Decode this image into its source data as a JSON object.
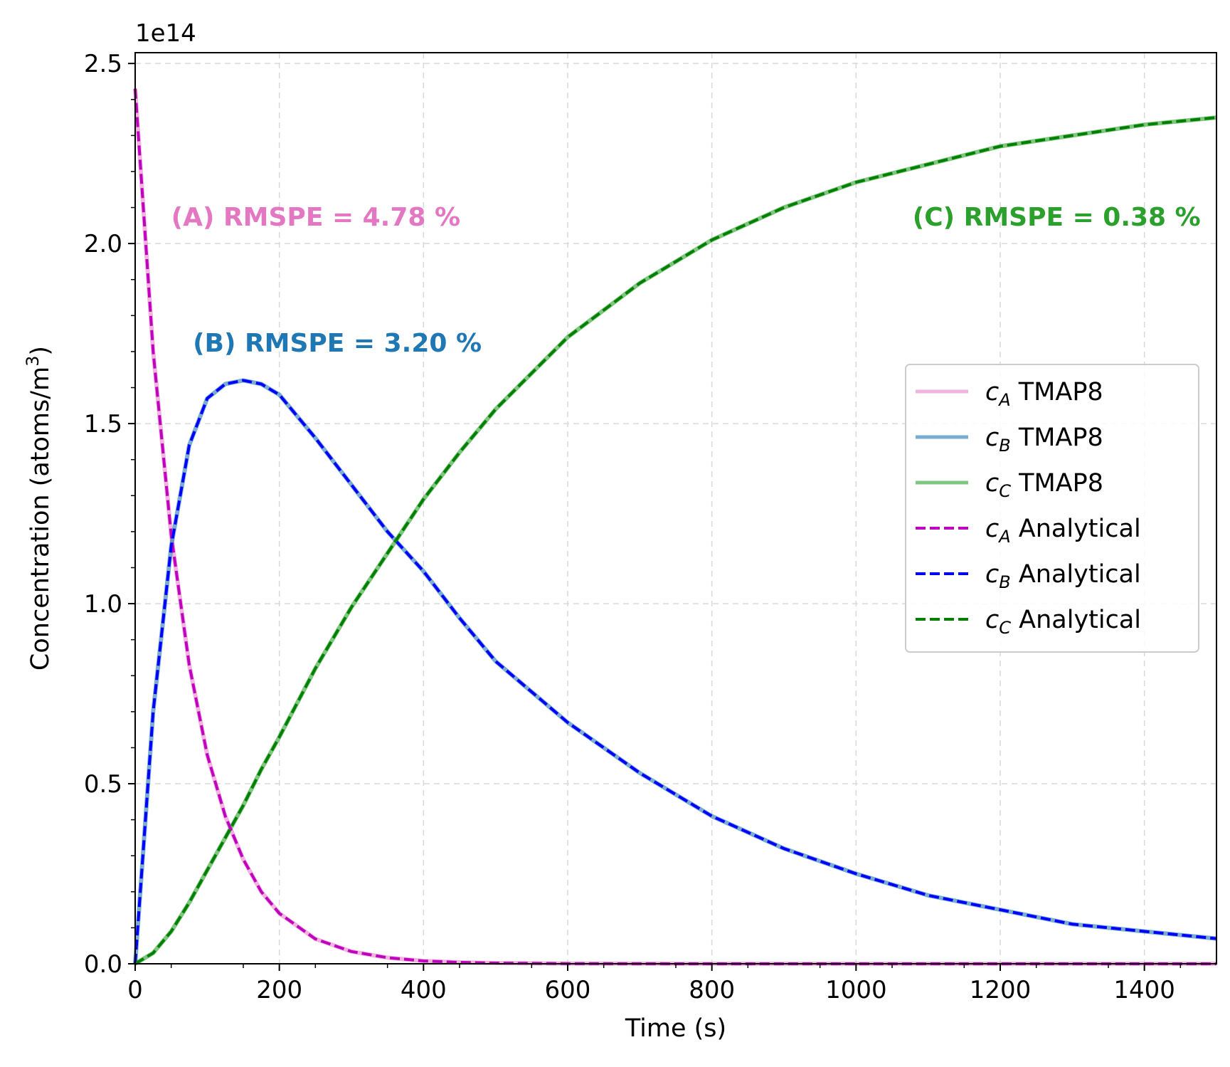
{
  "chart_data": {
    "type": "line",
    "xlabel": "Time (s)",
    "ylabel_prefix": "Concentration (atoms/m",
    "ylabel_superscript": "3",
    "ylabel_suffix": ")",
    "offset_text": "1e14",
    "xlim": [
      0,
      1500
    ],
    "ylim": [
      0,
      2.53
    ],
    "y_scale_factor": 100000000000000.0,
    "grid": true,
    "legend_position": "center-right",
    "x_ticks": [
      0,
      200,
      400,
      600,
      800,
      1000,
      1200,
      1400
    ],
    "x_tick_labels": [
      "0",
      "200",
      "400",
      "600",
      "800",
      "1000",
      "1200",
      "1400"
    ],
    "y_ticks": [
      0,
      0.5,
      1.0,
      1.5,
      2.0,
      2.5
    ],
    "y_tick_labels": [
      "0.0",
      "0.5",
      "1.0",
      "1.5",
      "2.0",
      "2.5"
    ],
    "x": [
      0,
      25,
      50,
      75,
      100,
      125,
      150,
      175,
      200,
      250,
      300,
      350,
      400,
      450,
      500,
      600,
      700,
      800,
      900,
      1000,
      1100,
      1200,
      1300,
      1400,
      1500
    ],
    "series": [
      {
        "name": "c_A TMAP8",
        "sub": "A",
        "label_suffix": " TMAP8",
        "color": "#e377c2",
        "alpha": 0.55,
        "dash": "solid",
        "values": [
          2.43,
          1.7,
          1.19,
          0.83,
          0.58,
          0.41,
          0.29,
          0.2,
          0.14,
          0.069,
          0.034,
          0.017,
          0.008,
          0.004,
          0.002,
          0.0005,
          0.0001,
          0.0,
          0.0,
          0.0,
          0.0,
          0.0,
          0.0,
          0.0,
          0.0
        ]
      },
      {
        "name": "c_B TMAP8",
        "sub": "B",
        "label_suffix": " TMAP8",
        "color": "#1f77b4",
        "alpha": 0.6,
        "dash": "solid",
        "values": [
          0.0,
          0.7,
          1.16,
          1.44,
          1.57,
          1.61,
          1.62,
          1.61,
          1.58,
          1.46,
          1.33,
          1.2,
          1.09,
          0.96,
          0.84,
          0.67,
          0.53,
          0.41,
          0.32,
          0.25,
          0.19,
          0.15,
          0.11,
          0.09,
          0.07
        ]
      },
      {
        "name": "c_C TMAP8",
        "sub": "C",
        "label_suffix": " TMAP8",
        "color": "#2ca02c",
        "alpha": 0.6,
        "dash": "solid",
        "values": [
          0.0,
          0.03,
          0.09,
          0.17,
          0.26,
          0.35,
          0.44,
          0.54,
          0.63,
          0.82,
          0.99,
          1.14,
          1.29,
          1.42,
          1.54,
          1.74,
          1.89,
          2.01,
          2.1,
          2.17,
          2.22,
          2.27,
          2.3,
          2.33,
          2.35
        ]
      },
      {
        "name": "c_A Analytical",
        "sub": "A",
        "label_suffix": " Analytical",
        "color": "#bf00bf",
        "alpha": 1,
        "dash": "dashed",
        "values": [
          2.43,
          1.7,
          1.19,
          0.83,
          0.58,
          0.41,
          0.29,
          0.2,
          0.14,
          0.069,
          0.034,
          0.017,
          0.008,
          0.004,
          0.002,
          0.0005,
          0.0001,
          0.0,
          0.0,
          0.0,
          0.0,
          0.0,
          0.0,
          0.0,
          0.0
        ]
      },
      {
        "name": "c_B Analytical",
        "sub": "B",
        "label_suffix": " Analytical",
        "color": "#0000ff",
        "alpha": 1,
        "dash": "dashed",
        "values": [
          0.0,
          0.7,
          1.16,
          1.44,
          1.57,
          1.61,
          1.62,
          1.61,
          1.58,
          1.46,
          1.33,
          1.2,
          1.09,
          0.96,
          0.84,
          0.67,
          0.53,
          0.41,
          0.32,
          0.25,
          0.19,
          0.15,
          0.11,
          0.09,
          0.07
        ]
      },
      {
        "name": "c_C Analytical",
        "sub": "C",
        "label_suffix": " Analytical",
        "color": "#008000",
        "alpha": 1,
        "dash": "dashed",
        "values": [
          0.0,
          0.03,
          0.09,
          0.17,
          0.26,
          0.35,
          0.44,
          0.54,
          0.63,
          0.82,
          0.99,
          1.14,
          1.29,
          1.42,
          1.54,
          1.74,
          1.89,
          2.01,
          2.1,
          2.17,
          2.22,
          2.27,
          2.3,
          2.33,
          2.35
        ]
      }
    ],
    "annotations": [
      {
        "text": "(A) RMSPE = 4.78 %",
        "color": "#e377c2",
        "x": 50,
        "y": 2.05,
        "anchor": "start"
      },
      {
        "text": "(B) RMSPE = 3.20 %",
        "color": "#1f77b4",
        "x": 80,
        "y": 1.7,
        "anchor": "start"
      },
      {
        "text": "(C) RMSPE = 0.38 %",
        "color": "#2ca02c",
        "x": 1478,
        "y": 2.05,
        "anchor": "end"
      }
    ]
  }
}
